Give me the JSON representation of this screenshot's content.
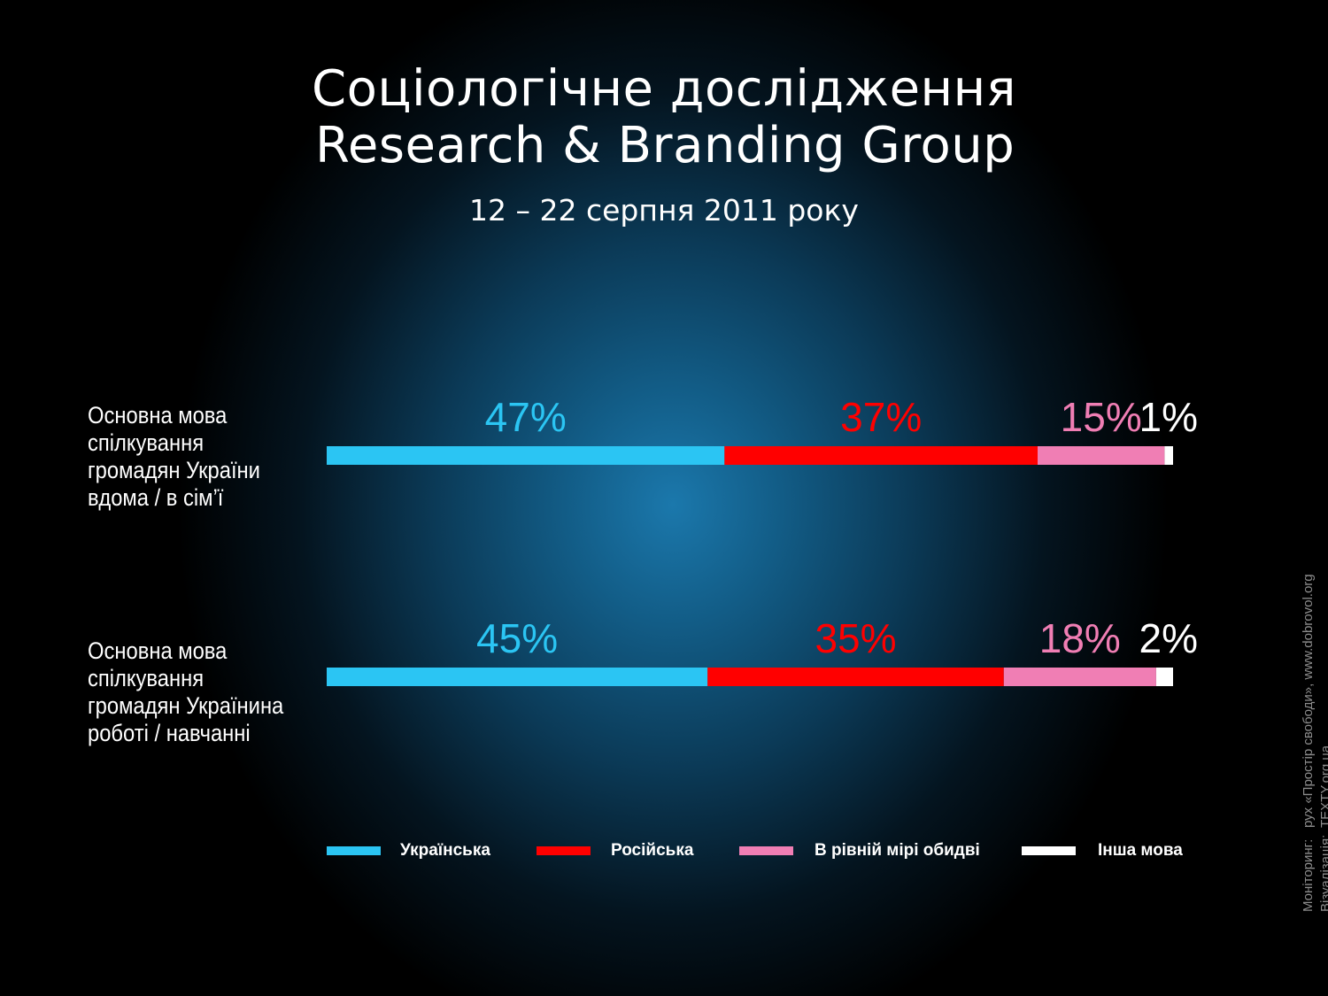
{
  "title_line1": "Соціологічне дослідження",
  "title_line2": "Research & Branding Group",
  "subtitle": "12 – 22 серпня 2011 року",
  "credits": {
    "monitoring_label": "Моніторинг:",
    "monitoring_value": "рух «Простір свободи», www.dobrovol.org",
    "visualization_label": "Візуалізація:",
    "visualization_value": "TEXTY.org.ua"
  },
  "colors": {
    "ukrainian": "#2bc5f3",
    "russian": "#ff0000",
    "both": "#f07eb4",
    "other": "#ffffff"
  },
  "chart_data": {
    "type": "bar",
    "stacked": true,
    "orientation": "horizontal",
    "categories": [
      "Основна мова спілкування громадян України вдома / в сім’ї",
      "Основна мова спілкування громадян Українина роботі / навчанні"
    ],
    "series": [
      {
        "name": "Українська",
        "values": [
          47,
          45
        ],
        "labels": [
          "47%",
          "45%"
        ],
        "color": "#2bc5f3"
      },
      {
        "name": "Російська",
        "values": [
          37,
          35
        ],
        "labels": [
          "37%",
          "35%"
        ],
        "color": "#ff0000"
      },
      {
        "name": "В рівній мірі обидві",
        "values": [
          15,
          18
        ],
        "labels": [
          "15%",
          "18%"
        ],
        "color": "#f07eb4"
      },
      {
        "name": "Інша мова",
        "values": [
          1,
          2
        ],
        "labels": [
          "1%",
          "2%"
        ],
        "color": "#ffffff"
      }
    ],
    "xlim": [
      0,
      100
    ],
    "legend_position": "bottom",
    "grid": false
  }
}
